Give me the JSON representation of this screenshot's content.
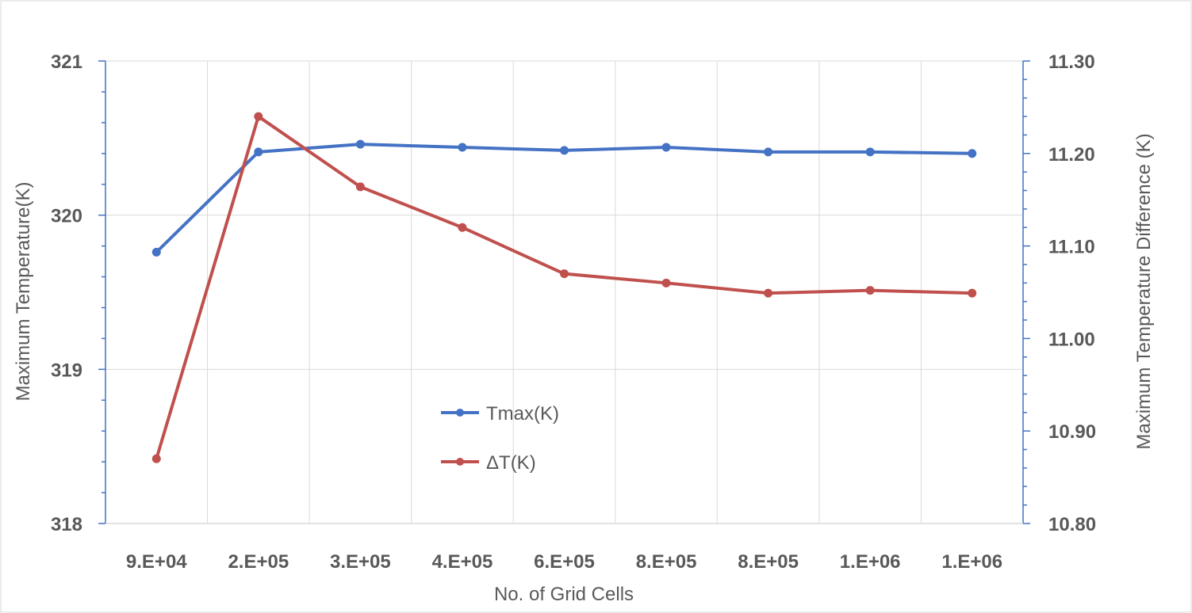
{
  "chart_data": {
    "type": "line",
    "categories": [
      "9.E+04",
      "2.E+05",
      "3.E+05",
      "4.E+05",
      "6.E+05",
      "8.E+05",
      "8.E+05",
      "1.E+06",
      "1.E+06"
    ],
    "xlabel": "No. of Grid Cells",
    "ylabel": "Maximum Temperature(K)",
    "y2label": "Maximum Temperature Difference (K)",
    "ylim": [
      318,
      321
    ],
    "y2lim": [
      10.8,
      11.3
    ],
    "yticks": [
      "318",
      "319",
      "320",
      "321"
    ],
    "y2ticks": [
      "10.80",
      "10.90",
      "11.00",
      "11.10",
      "11.20",
      "11.30"
    ],
    "grid": true,
    "legend_position": "center",
    "series": [
      {
        "name": "Tmax(K)",
        "axis": "left",
        "color": "#4472C4",
        "values": [
          319.76,
          320.41,
          320.46,
          320.44,
          320.42,
          320.44,
          320.41,
          320.41,
          320.4
        ]
      },
      {
        "name": "ΔT(K)",
        "axis": "right",
        "color": "#C0504D",
        "values": [
          10.87,
          11.24,
          11.164,
          11.12,
          11.07,
          11.06,
          11.049,
          11.052,
          11.049
        ]
      }
    ]
  }
}
